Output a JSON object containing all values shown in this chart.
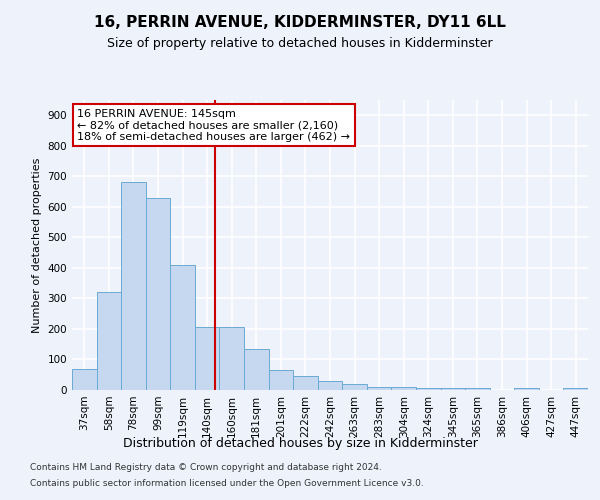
{
  "title": "16, PERRIN AVENUE, KIDDERMINSTER, DY11 6LL",
  "subtitle": "Size of property relative to detached houses in Kidderminster",
  "xlabel": "Distribution of detached houses by size in Kidderminster",
  "ylabel": "Number of detached properties",
  "categories": [
    "37sqm",
    "58sqm",
    "78sqm",
    "99sqm",
    "119sqm",
    "140sqm",
    "160sqm",
    "181sqm",
    "201sqm",
    "222sqm",
    "242sqm",
    "263sqm",
    "283sqm",
    "304sqm",
    "324sqm",
    "345sqm",
    "365sqm",
    "386sqm",
    "406sqm",
    "427sqm",
    "447sqm"
  ],
  "values": [
    70,
    320,
    680,
    630,
    410,
    207,
    207,
    135,
    65,
    45,
    30,
    20,
    10,
    10,
    5,
    5,
    5,
    0,
    5,
    0,
    5
  ],
  "bar_color": "#c5d8f0",
  "bar_edge_color": "#6aaad4",
  "annotation_title": "16 PERRIN AVENUE: 145sqm",
  "annotation_line1": "← 82% of detached houses are smaller (2,160)",
  "annotation_line2": "18% of semi-detached houses are larger (462) →",
  "annotation_box_color": "white",
  "annotation_box_edge_color": "#cc0000",
  "vline_color": "#cc0000",
  "footer1": "Contains HM Land Registry data © Crown copyright and database right 2024.",
  "footer2": "Contains public sector information licensed under the Open Government Licence v3.0.",
  "ylim": [
    0,
    950
  ],
  "yticks": [
    0,
    100,
    200,
    300,
    400,
    500,
    600,
    700,
    800,
    900
  ],
  "title_fontsize": 11,
  "subtitle_fontsize": 9,
  "ylabel_fontsize": 8,
  "xlabel_fontsize": 9,
  "tick_fontsize": 7.5,
  "annotation_fontsize": 8,
  "footer_fontsize": 6.5,
  "bg_color": "#eef2fb",
  "grid_color": "white"
}
